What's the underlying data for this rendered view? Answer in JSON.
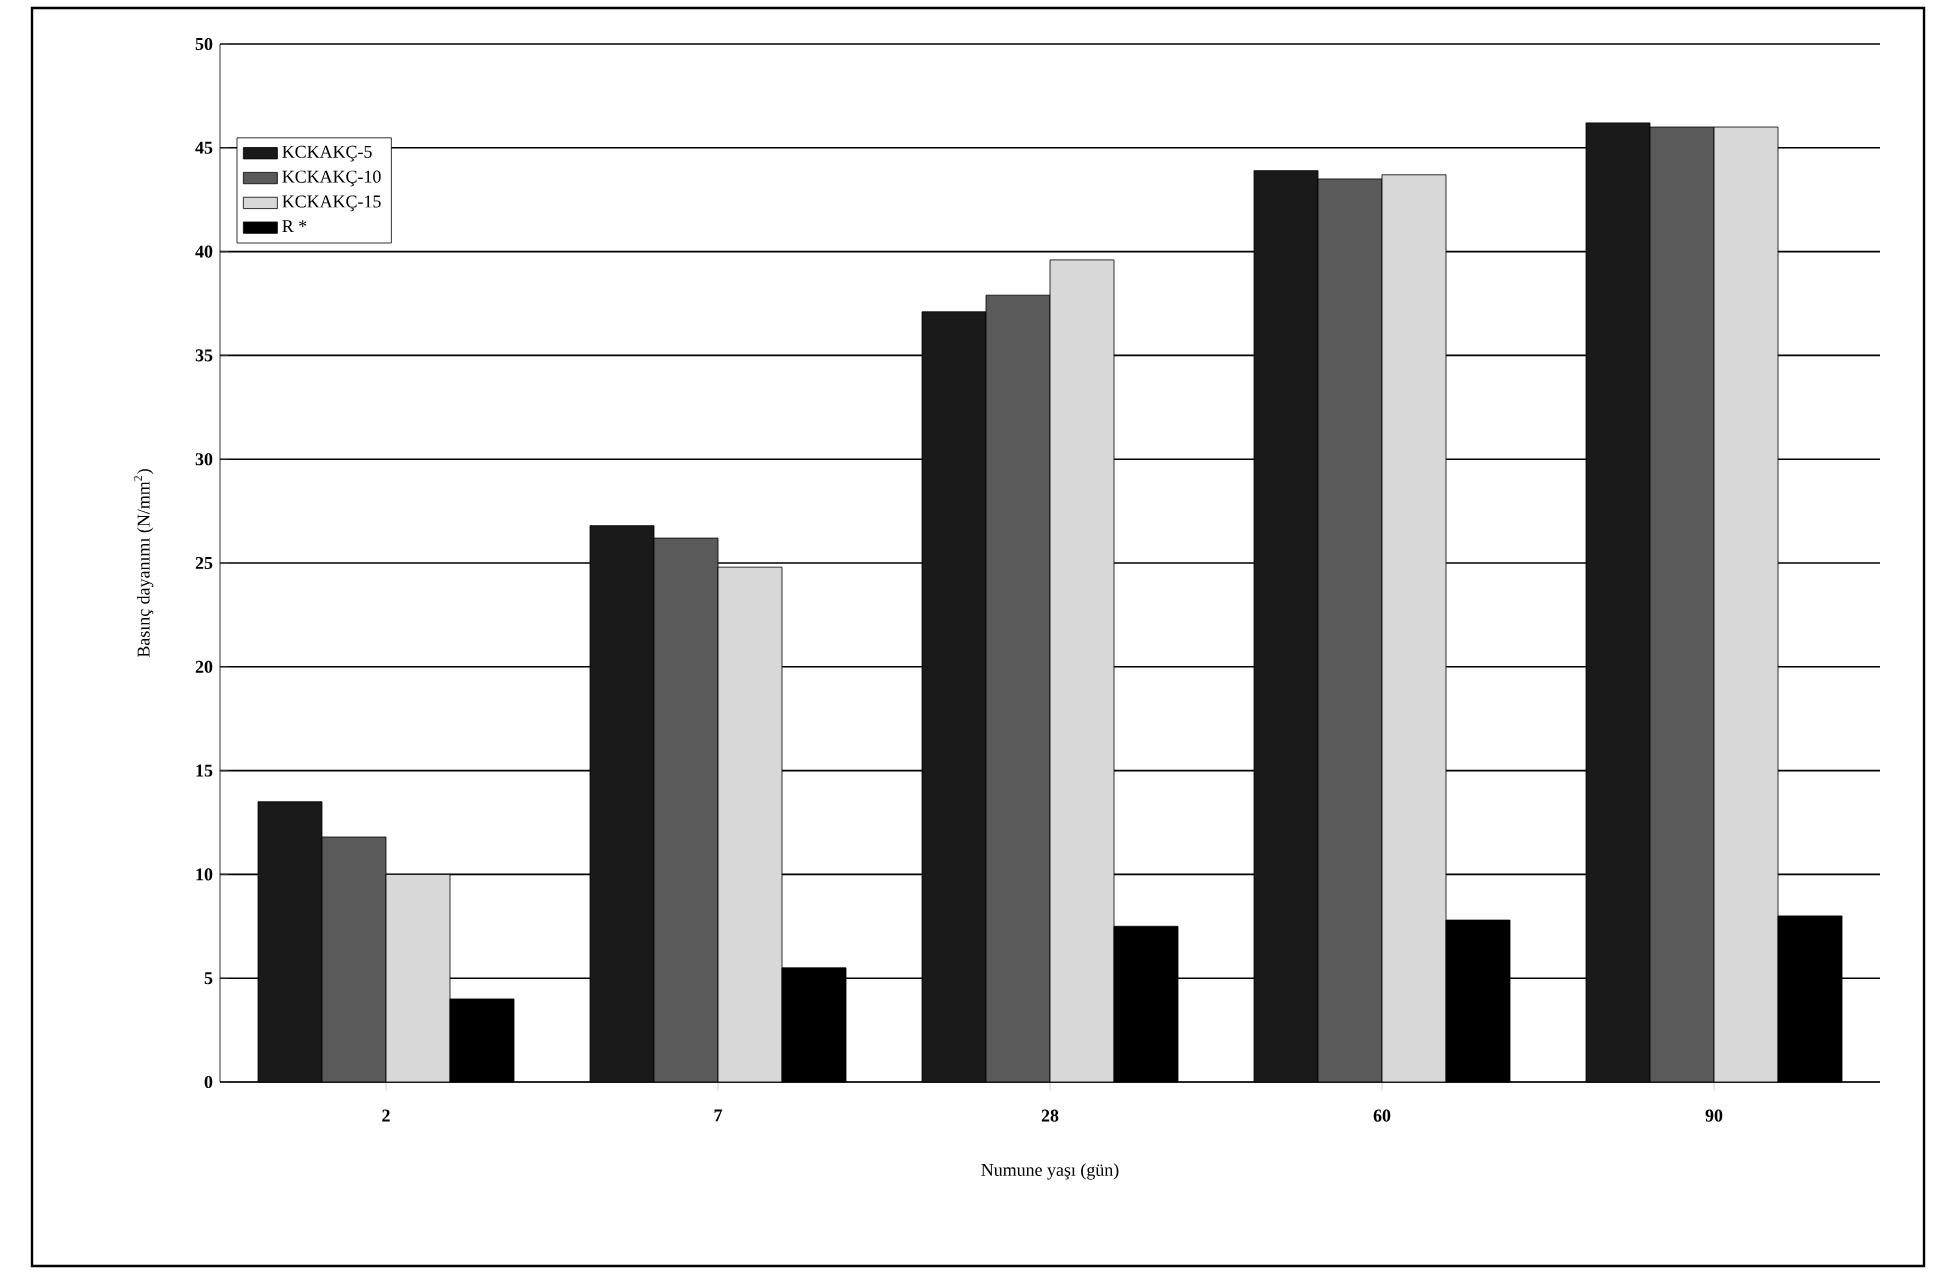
{
  "chart_data": {
    "type": "bar",
    "xlabel": "Numune yaşı (gün)",
    "ylabel": "Basınç dayanımı (N/mm$^{2}$)",
    "categories": [
      "2",
      "7",
      "28",
      "60",
      "90"
    ],
    "series": [
      {
        "name": "KCKAKÇ-5",
        "color": "#1a1a1a",
        "values": [
          13.5,
          26.8,
          37.1,
          43.9,
          46.2
        ]
      },
      {
        "name": "KCKAKÇ-10",
        "color": "#5a5a5a",
        "values": [
          11.8,
          26.2,
          37.9,
          43.5,
          46.0
        ]
      },
      {
        "name": "KCKAKÇ-15",
        "color": "#d8d8d8",
        "values": [
          10.0,
          24.8,
          39.6,
          43.7,
          46.0
        ]
      },
      {
        "name": "R      *",
        "color": "#000000",
        "values": [
          4.0,
          5.5,
          7.5,
          7.8,
          8.0
        ]
      }
    ],
    "ylim": [
      0,
      50
    ],
    "yticks": [
      0,
      5,
      10,
      15,
      20,
      25,
      30,
      35,
      40,
      45,
      50
    ],
    "grid": "y",
    "legend": "top left"
  }
}
